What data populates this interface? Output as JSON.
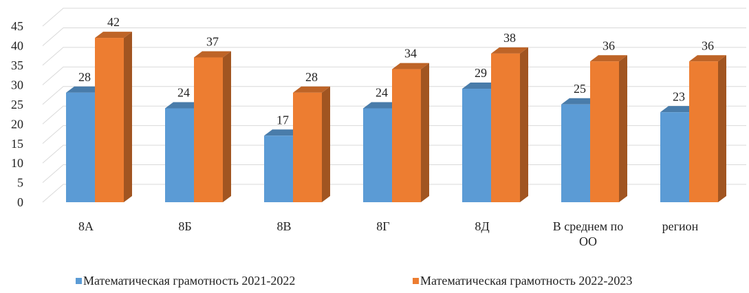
{
  "chart_data": {
    "type": "bar3d",
    "categories": [
      "8А",
      "8Б",
      "8В",
      "8Г",
      "8Д",
      "В среднем по ОО",
      "регион"
    ],
    "series": [
      {
        "name": "Математическая грамотность 2021-2022",
        "color": "#5b9bd5",
        "values": [
          28,
          24,
          17,
          24,
          29,
          25,
          23
        ]
      },
      {
        "name": "Математическая грамотность 2022-2023",
        "color": "#ed7d31",
        "values": [
          42,
          37,
          28,
          34,
          38,
          36,
          36
        ]
      }
    ],
    "ylim": [
      0,
      45
    ],
    "yticks": [
      0,
      5,
      10,
      15,
      20,
      25,
      30,
      35,
      40,
      45
    ],
    "grid": true,
    "legend": "bottom"
  }
}
